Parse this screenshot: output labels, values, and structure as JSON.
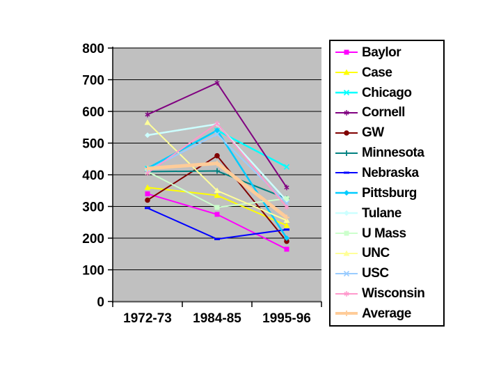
{
  "slide": {
    "background": "#FFFFFF",
    "description": "Line chart of enrollment-style figures for 13 universities plus average across three academic years"
  },
  "chart_data": {
    "type": "line",
    "title": "",
    "xlabel": "",
    "ylabel": "",
    "categories": [
      "1972-73",
      "1984-85",
      "1995-96"
    ],
    "series": [
      {
        "name": "Baylor",
        "color": "#FF00FF",
        "marker": "square",
        "width": 2,
        "values": [
          340,
          275,
          165
        ]
      },
      {
        "name": "Case",
        "color": "#FFFF00",
        "marker": "triangle",
        "width": 2,
        "values": [
          360,
          335,
          240
        ]
      },
      {
        "name": "Chicago",
        "color": "#00FFFF",
        "marker": "x",
        "width": 2.5,
        "values": [
          420,
          540,
          425
        ]
      },
      {
        "name": "Cornell",
        "color": "#800080",
        "marker": "asterisk",
        "width": 2,
        "values": [
          590,
          690,
          360
        ]
      },
      {
        "name": "GW",
        "color": "#800000",
        "marker": "circle",
        "width": 2,
        "values": [
          320,
          460,
          190
        ]
      },
      {
        "name": "Minnesota",
        "color": "#008080",
        "marker": "plus",
        "width": 2,
        "values": [
          410,
          412,
          325
        ]
      },
      {
        "name": "Nebraska",
        "color": "#0000FF",
        "marker": "dash",
        "width": 2,
        "values": [
          295,
          197,
          227
        ]
      },
      {
        "name": "Pittsburg",
        "color": "#00CCFF",
        "marker": "diamond",
        "width": 2.5,
        "values": [
          420,
          540,
          200
        ]
      },
      {
        "name": "Tulane",
        "color": "#CCFFFF",
        "marker": "diamond",
        "width": 2.5,
        "values": [
          525,
          560,
          318
        ]
      },
      {
        "name": "U Mass",
        "color": "#CCFFCC",
        "marker": "square",
        "width": 2,
        "values": [
          410,
          297,
          325
        ]
      },
      {
        "name": "UNC",
        "color": "#FFFF99",
        "marker": "triangle",
        "width": 2,
        "values": [
          565,
          350,
          256
        ]
      },
      {
        "name": "USC",
        "color": "#99CCFF",
        "marker": "x",
        "width": 2,
        "values": [
          415,
          528,
          310
        ]
      },
      {
        "name": "Wisconsin",
        "color": "#FF99CC",
        "marker": "asterisk",
        "width": 2,
        "values": [
          405,
          562,
          298
        ]
      },
      {
        "name": "Average",
        "color": "#FFCC99",
        "marker": "plus",
        "width": 5,
        "values": [
          420,
          436,
          265
        ]
      }
    ],
    "ylim": [
      0,
      800
    ],
    "ytick_step": 100,
    "yticks": [
      "0",
      "100",
      "200",
      "300",
      "400",
      "500",
      "600",
      "700",
      "800"
    ],
    "grid": true,
    "gridline_color": "#000000",
    "plot_bg": "#C0C0C0",
    "axis_color": "#000000",
    "legend_position": "right"
  }
}
